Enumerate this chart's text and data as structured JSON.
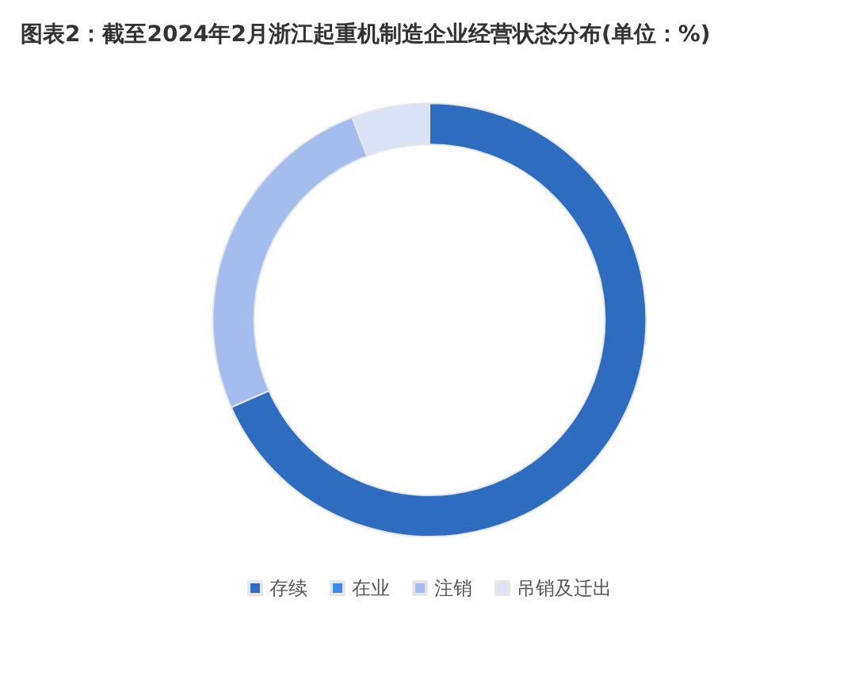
{
  "chart_data": {
    "type": "donut",
    "title": "图表2：截至2024年2月浙江起重机制造企业经营状态分布(单位：%)",
    "categories": [
      "存续",
      "在业",
      "注销",
      "吊销及迁出"
    ],
    "values": [
      68.4,
      0,
      25.8,
      5.8
    ],
    "colors": [
      "#2e6cc0",
      "#3d8be8",
      "#a4bdef",
      "#dae3f5"
    ],
    "legend": "bottom"
  }
}
